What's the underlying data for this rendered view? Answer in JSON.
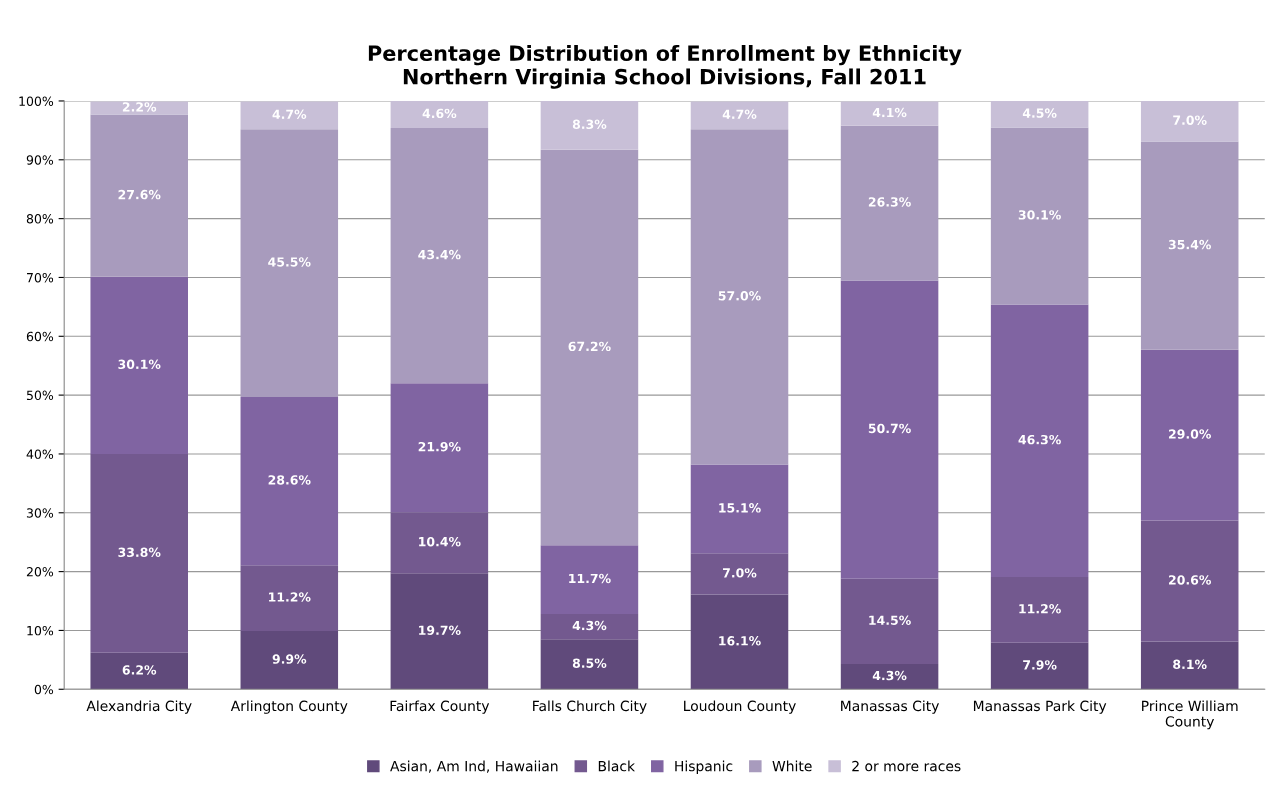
{
  "chart_data": {
    "type": "bar",
    "stacked": true,
    "title": "Percentage Distribution of Enrollment by Ethnicity\nNorthern Virginia School Divisions, Fall 2011",
    "categories": [
      "Alexandria City",
      "Arlington County",
      "Fairfax County",
      "Falls Church City",
      "Loudoun County",
      "Manassas City",
      "Manassas Park City",
      "Prince William\nCounty"
    ],
    "series": [
      {
        "name": "Asian, Am Ind, Hawaiian",
        "color": "#604a7b",
        "values": [
          6.2,
          9.9,
          19.7,
          8.5,
          16.1,
          4.3,
          7.9,
          8.1
        ],
        "value_labels": [
          "6.2%",
          "9.9%",
          "19.7%",
          "8.5%",
          "16.1%",
          "4.3%",
          "7.9%",
          "8.1%"
        ]
      },
      {
        "name": "Black",
        "color": "#73598f",
        "values": [
          33.8,
          11.2,
          10.4,
          4.3,
          7.0,
          14.5,
          11.2,
          20.6
        ],
        "value_labels": [
          "33.8%",
          "11.2%",
          "10.4%",
          "4.3%",
          "7.0%",
          "14.5%",
          "11.2%",
          "20.6%"
        ]
      },
      {
        "name": "Hispanic",
        "color": "#8064a2",
        "values": [
          30.1,
          28.6,
          21.9,
          11.7,
          15.1,
          50.7,
          46.3,
          29.0
        ],
        "value_labels": [
          "30.1%",
          "28.6%",
          "21.9%",
          "11.7%",
          "15.1%",
          "50.7%",
          "46.3%",
          "29.0%"
        ]
      },
      {
        "name": "White",
        "color": "#a89bbd",
        "values": [
          27.6,
          45.5,
          43.4,
          67.2,
          57.0,
          26.3,
          30.1,
          35.4
        ],
        "value_labels": [
          "27.6%",
          "45.5%",
          "43.4%",
          "67.2%",
          "57.0%",
          "26.3%",
          "30.1%",
          "35.4%"
        ]
      },
      {
        "name": "2 or more races",
        "color": "#c8bfd7",
        "values": [
          2.2,
          4.7,
          4.6,
          8.3,
          4.7,
          4.1,
          4.5,
          7.0
        ],
        "value_labels": [
          "2.2%",
          "4.7%",
          "4.6%",
          "8.3%",
          "4.7%",
          "4.1%",
          "4.5%",
          "7.0%"
        ]
      }
    ],
    "ylim": [
      0,
      100
    ],
    "yticks": [
      {
        "value": 0,
        "label": "0%"
      },
      {
        "value": 10,
        "label": "10%"
      },
      {
        "value": 20,
        "label": "20%"
      },
      {
        "value": 30,
        "label": "30%"
      },
      {
        "value": 40,
        "label": "40%"
      },
      {
        "value": 50,
        "label": "50%"
      },
      {
        "value": 60,
        "label": "60%"
      },
      {
        "value": 70,
        "label": "70%"
      },
      {
        "value": 80,
        "label": "80%"
      },
      {
        "value": 90,
        "label": "90%"
      },
      {
        "value": 100,
        "label": "100%"
      }
    ],
    "grid": "y",
    "legend": "bottom"
  }
}
